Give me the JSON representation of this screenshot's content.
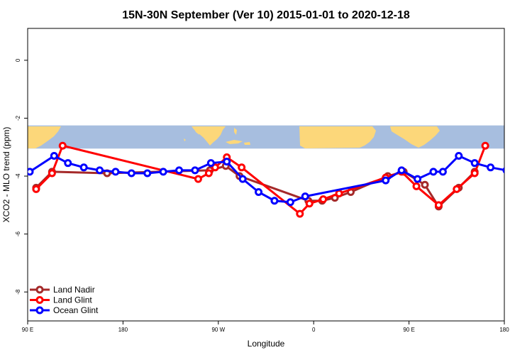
{
  "chart_data": {
    "type": "line",
    "title": "15N-30N September (Ver 10)   2015-01-01 to 2020-12-18",
    "xlabel": "Longitude",
    "ylabel": "XCO2 - MLO trend (ppm)",
    "x_ticks": [
      {
        "value": 90,
        "label": "90 E"
      },
      {
        "value": 180,
        "label": "180"
      },
      {
        "value": 270,
        "label": "90 W"
      },
      {
        "value": 360,
        "label": "0"
      },
      {
        "value": 450,
        "label": "90 E"
      },
      {
        "value": 540,
        "label": "180"
      }
    ],
    "y_ticks": [
      0,
      -2,
      -4,
      -6,
      -8
    ],
    "xlim": [
      90,
      540
    ],
    "ylim": [
      -9,
      1.1
    ],
    "grid": false,
    "legend_position": "bottom-left",
    "map_strip": {
      "ymin": -3.05,
      "ymax": -2.25
    },
    "series": [
      {
        "name": "Land Nadir",
        "color": "#a52a2a",
        "points": [
          [
            98,
            -4.4
          ],
          [
            113,
            -3.85
          ],
          [
            165,
            -3.9
          ],
          [
            262,
            -3.8
          ],
          [
            277,
            -3.65
          ],
          [
            290,
            -4.0
          ],
          [
            355,
            -4.85
          ],
          [
            368,
            -4.85
          ],
          [
            380,
            -4.75
          ],
          [
            395,
            -4.55
          ],
          [
            430,
            -4.0
          ],
          [
            445,
            -3.85
          ],
          [
            465,
            -4.3
          ],
          [
            478,
            -5.05
          ],
          [
            497,
            -4.4
          ],
          [
            512,
            -3.85
          ]
        ]
      },
      {
        "name": "Land Glint",
        "color": "#ff0000",
        "points": [
          [
            98,
            -4.45
          ],
          [
            113,
            -3.9
          ],
          [
            123,
            -2.95
          ],
          [
            251,
            -4.1
          ],
          [
            261,
            -3.9
          ],
          [
            267,
            -3.7
          ],
          [
            278,
            -3.35
          ],
          [
            292,
            -3.7
          ],
          [
            347,
            -5.3
          ],
          [
            356,
            -4.95
          ],
          [
            369,
            -4.8
          ],
          [
            384,
            -4.6
          ],
          [
            428,
            -4.05
          ],
          [
            443,
            -3.85
          ],
          [
            457,
            -4.35
          ],
          [
            478,
            -5.0
          ],
          [
            495,
            -4.45
          ],
          [
            512,
            -3.9
          ],
          [
            522,
            -2.95
          ]
        ]
      },
      {
        "name": "Ocean Glint",
        "color": "#0000ff",
        "points": [
          [
            92,
            -3.85
          ],
          [
            115,
            -3.3
          ],
          [
            128,
            -3.55
          ],
          [
            143,
            -3.7
          ],
          [
            158,
            -3.8
          ],
          [
            173,
            -3.85
          ],
          [
            188,
            -3.9
          ],
          [
            203,
            -3.9
          ],
          [
            218,
            -3.85
          ],
          [
            233,
            -3.8
          ],
          [
            248,
            -3.8
          ],
          [
            263,
            -3.55
          ],
          [
            278,
            -3.5
          ],
          [
            293,
            -4.1
          ],
          [
            308,
            -4.55
          ],
          [
            323,
            -4.85
          ],
          [
            338,
            -4.9
          ],
          [
            352,
            -4.7
          ],
          [
            428,
            -4.15
          ],
          [
            443,
            -3.8
          ],
          [
            458,
            -4.1
          ],
          [
            473,
            -3.85
          ],
          [
            482,
            -3.85
          ],
          [
            497,
            -3.3
          ],
          [
            512,
            -3.55
          ],
          [
            527,
            -3.7
          ],
          [
            542,
            -3.8
          ],
          [
            557,
            -3.85
          ],
          [
            572,
            -3.9
          ]
        ]
      }
    ]
  }
}
